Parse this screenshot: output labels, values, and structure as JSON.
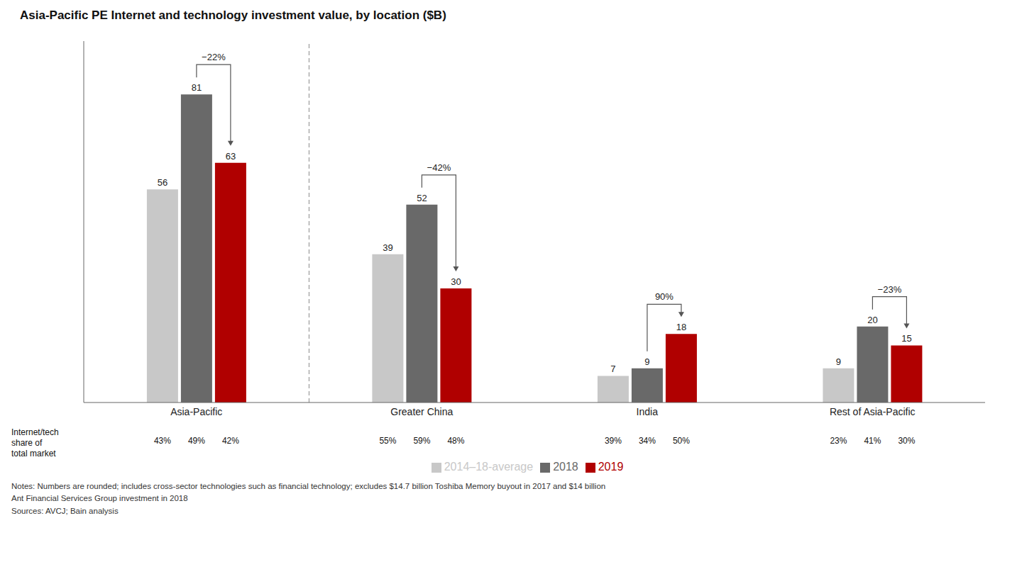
{
  "chart_data": {
    "type": "bar",
    "title": "Asia-Pacific PE Internet and technology investment value, by location ($B)",
    "categories": [
      "Asia-Pacific",
      "Greater China",
      "India",
      "Rest of Asia-Pacific"
    ],
    "series": [
      {
        "name": "2014–18-average",
        "color": "#c8c8c8",
        "values": [
          56,
          39,
          7,
          9
        ],
        "market_shares": [
          "43%",
          "55%",
          "39%",
          "23%"
        ]
      },
      {
        "name": "2018",
        "color": "#696969",
        "values": [
          81,
          52,
          9,
          20
        ],
        "market_shares": [
          "49%",
          "59%",
          "34%",
          "41%"
        ]
      },
      {
        "name": "2019",
        "color": "#b00000",
        "values": [
          63,
          30,
          18,
          15
        ],
        "market_shares": [
          "42%",
          "48%",
          "50%",
          "30%"
        ]
      }
    ],
    "market_share_title": "Internet/tech\nshare of\ntotal market",
    "annotations": [
      "−22%",
      "−42%",
      "90%",
      "−23%"
    ],
    "notes": [
      "Notes: Numbers are rounded; includes cross-sector technologies such as financial technology; excludes $14.7 billion Toshiba Memory buyout in 2017 and $14 billion",
      "Ant Financial Services Group investment in 2018",
      "Sources: AVCJ; Bain analysis"
    ],
    "ylim": [
      0,
      95
    ],
    "tick_labels": "x",
    "data_labels": true,
    "grid": false,
    "legend": "bottom"
  }
}
